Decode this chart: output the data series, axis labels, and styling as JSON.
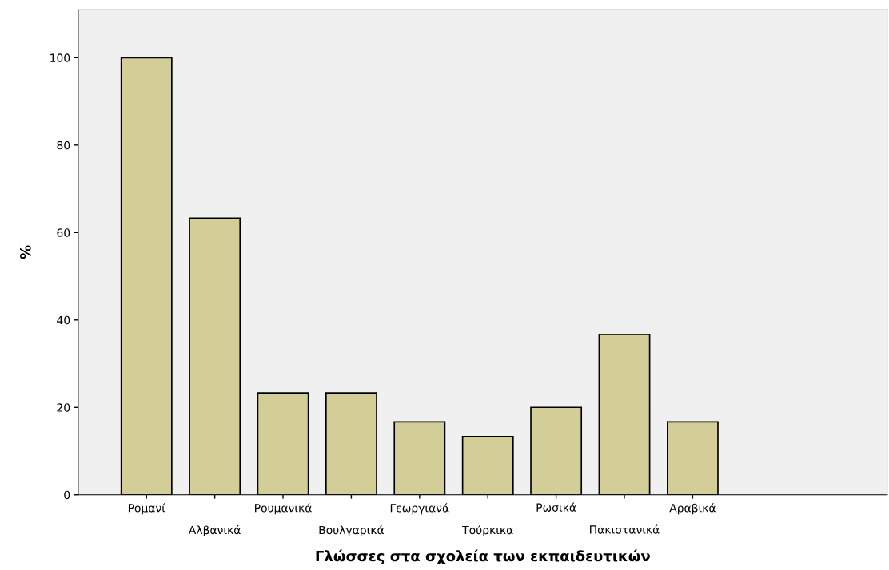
{
  "chart_data": {
    "type": "bar",
    "xlabel": "Γλώσσες στα σχολεία των εκπαιδευτικών",
    "ylabel": "%",
    "categories": [
      "Ρομανί",
      "Αλβανικά",
      "Ρουμανικά",
      "Βουλγαρικά",
      "Γεωργιανά",
      "Τούρκικα",
      "Ρωσικά",
      "Πακιστανικά",
      "Αραβικά"
    ],
    "values": [
      100,
      63.3,
      23.3,
      23.3,
      16.7,
      13.3,
      20,
      36.7,
      16.7
    ],
    "color": "#d3ce97",
    "ylim": [
      0,
      111
    ],
    "yticks": [
      0,
      20,
      40,
      60,
      80,
      100
    ],
    "grid": false
  }
}
